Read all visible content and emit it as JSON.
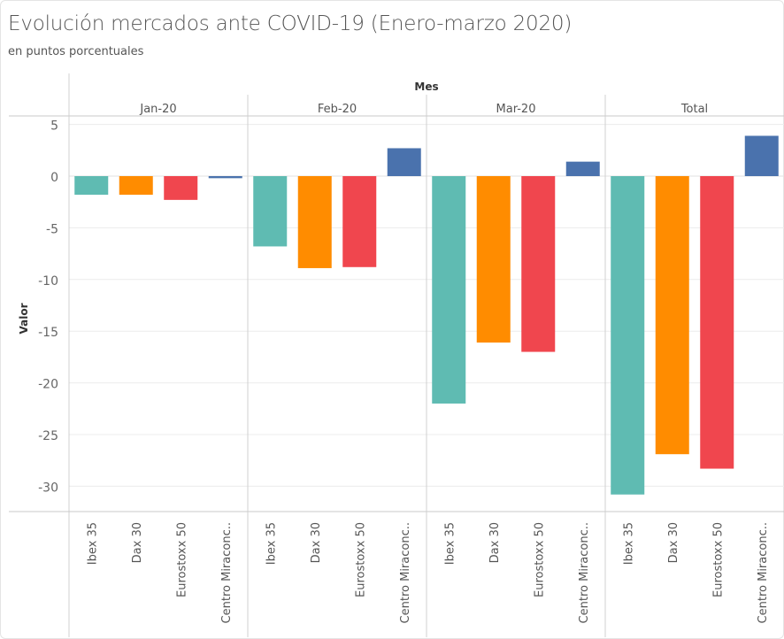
{
  "header": {
    "title": "Evolución mercados ante COVID-19 (Enero-marzo 2020)",
    "subtitle": "en puntos porcentuales"
  },
  "chart_data": {
    "type": "bar",
    "title": "Evolución mercados ante COVID-19 (Enero-marzo 2020)",
    "subtitle": "en puntos porcentuales",
    "column_header": "Mes",
    "ylabel": "Valor",
    "xlabel": "",
    "ylim": [
      -32.6,
      5.4
    ],
    "yticks": [
      5,
      0,
      -5,
      -10,
      -15,
      -20,
      -25,
      -30
    ],
    "grid": true,
    "legend": "none",
    "groups": [
      "Jan-20",
      "Feb-20",
      "Mar-20",
      "Total"
    ],
    "categories": [
      "Ibex 35",
      "Dax 30",
      "Eurostoxx 50",
      "Centro Miraconc.."
    ],
    "colors": {
      "Ibex 35": "#5fbbb2",
      "Dax 30": "#ff8c00",
      "Eurostoxx 50": "#f0464e",
      "Centro Miraconc..": "#4a72ad"
    },
    "series": [
      {
        "name": "Jan-20",
        "values": [
          -1.8,
          -1.8,
          -2.3,
          -0.2
        ]
      },
      {
        "name": "Feb-20",
        "values": [
          -6.8,
          -8.9,
          -8.8,
          2.7
        ]
      },
      {
        "name": "Mar-20",
        "values": [
          -22.0,
          -16.1,
          -17.0,
          1.4
        ]
      },
      {
        "name": "Total",
        "values": [
          -30.8,
          -26.9,
          -28.3,
          3.9
        ]
      }
    ]
  }
}
